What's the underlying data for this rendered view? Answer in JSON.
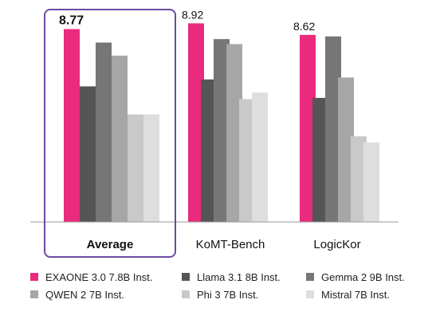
{
  "chart_data": {
    "type": "bar",
    "categories": [
      "Average",
      "KoMT-Bench",
      "LogicKor"
    ],
    "highlighted_category": "Average",
    "series": [
      {
        "name": "EXAONE 3.0 7.8B Inst.",
        "color": "#ea2a7d",
        "values": [
          8.77,
          8.92,
          8.62
        ]
      },
      {
        "name": "Llama 3.1 8B Inst.",
        "color": "#555555",
        "values": [
          7.28,
          7.46,
          6.98
        ]
      },
      {
        "name": "Gemma 2 9B Inst.",
        "color": "#767676",
        "values": [
          8.42,
          8.51,
          8.58
        ]
      },
      {
        "name": "QWEN 2 7B Inst.",
        "color": "#a6a6a6",
        "values": [
          8.08,
          8.38,
          7.51
        ]
      },
      {
        "name": "Phi 3 7B Inst.",
        "color": "#c9c9c9",
        "values": [
          6.55,
          6.95,
          5.98
        ]
      },
      {
        "name": "Mistral 7B Inst.",
        "color": "#dedede",
        "values": [
          6.55,
          7.12,
          5.82
        ]
      }
    ],
    "data_labels": [
      {
        "category": "Average",
        "series": "EXAONE 3.0 7.8B Inst.",
        "text": "8.77"
      },
      {
        "category": "KoMT-Bench",
        "series": "EXAONE 3.0 7.8B Inst.",
        "text": "8.92"
      },
      {
        "category": "LogicKor",
        "series": "EXAONE 3.0 7.8B Inst.",
        "text": "8.62"
      }
    ],
    "ylim": [
      3.75,
      9.3
    ],
    "grid": false,
    "legend_position": "bottom",
    "title": "",
    "xlabel": "",
    "ylabel": ""
  }
}
